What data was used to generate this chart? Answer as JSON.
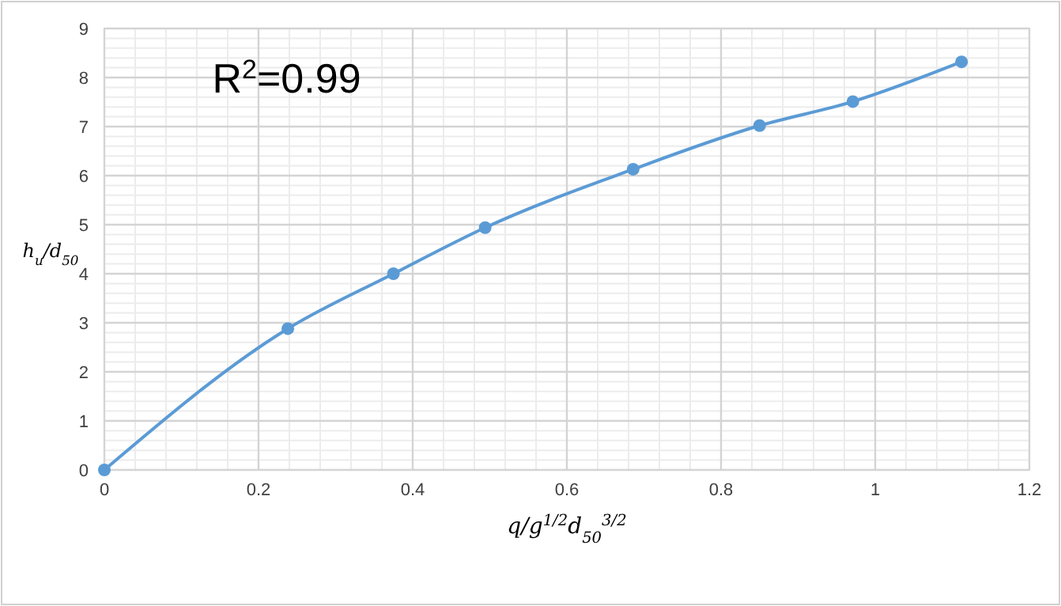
{
  "chart_data": {
    "type": "line",
    "xlabel": "q/g$^{1/2}$d$_{50}$$^{3/2}$",
    "ylabel": "h$_{u}$/d$_{50}$",
    "x": [
      0,
      0.238,
      0.375,
      0.494,
      0.686,
      0.85,
      0.971,
      1.112
    ],
    "series": [
      {
        "color": "#5b9bd5",
        "values": [
          0,
          2.88,
          4.0,
          4.94,
          6.13,
          7.02,
          7.51,
          8.32
        ]
      }
    ],
    "xlim": [
      0,
      1.2
    ],
    "xticks": [
      0,
      0.2,
      0.4,
      0.6,
      0.8,
      1,
      1.2
    ],
    "ylim": [
      0,
      9
    ],
    "yticks": [
      0,
      1,
      2,
      3,
      4,
      5,
      6,
      7,
      8,
      9
    ],
    "grid": true,
    "marker": "circle",
    "line_style": "solid",
    "annotations": [
      "R$^{2}$=0.99"
    ]
  }
}
